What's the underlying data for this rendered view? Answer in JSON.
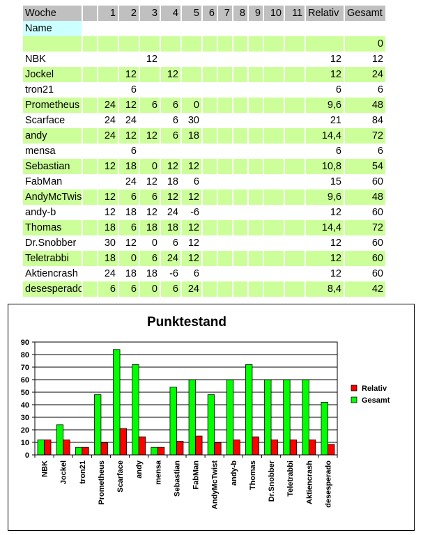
{
  "table": {
    "header": [
      "Woche",
      "",
      "1",
      "2",
      "3",
      "4",
      "5",
      "6",
      "7",
      "8",
      "9",
      "10",
      "11",
      "Relativ",
      "Gesamt"
    ],
    "name_label": "Name",
    "blank_row_total": "0",
    "rows": [
      {
        "name": "NBK",
        "w": [
          "",
          "",
          "12",
          "",
          "",
          "",
          "",
          "",
          "",
          "",
          ""
        ],
        "relativ": "12",
        "gesamt": "12"
      },
      {
        "name": "Jockel",
        "w": [
          "",
          "12",
          "",
          "12",
          "",
          "",
          "",
          "",
          "",
          "",
          ""
        ],
        "relativ": "12",
        "gesamt": "24"
      },
      {
        "name": "tron21",
        "w": [
          "",
          "6",
          "",
          "",
          "",
          "",
          "",
          "",
          "",
          "",
          ""
        ],
        "relativ": "6",
        "gesamt": "6"
      },
      {
        "name": "Prometheus",
        "w": [
          "24",
          "12",
          "6",
          "6",
          "0",
          "",
          "",
          "",
          "",
          "",
          ""
        ],
        "relativ": "9,6",
        "gesamt": "48"
      },
      {
        "name": "Scarface",
        "w": [
          "24",
          "24",
          "",
          "6",
          "30",
          "",
          "",
          "",
          "",
          "",
          ""
        ],
        "relativ": "21",
        "gesamt": "84"
      },
      {
        "name": "andy",
        "w": [
          "24",
          "12",
          "12",
          "6",
          "18",
          "",
          "",
          "",
          "",
          "",
          ""
        ],
        "relativ": "14,4",
        "gesamt": "72"
      },
      {
        "name": "mensa",
        "w": [
          "",
          "6",
          "",
          "",
          "",
          "",
          "",
          "",
          "",
          "",
          ""
        ],
        "relativ": "6",
        "gesamt": "6"
      },
      {
        "name": "Sebastian",
        "w": [
          "12",
          "18",
          "0",
          "12",
          "12",
          "",
          "",
          "",
          "",
          "",
          ""
        ],
        "relativ": "10,8",
        "gesamt": "54"
      },
      {
        "name": "FabMan",
        "w": [
          "",
          "24",
          "12",
          "18",
          "6",
          "",
          "",
          "",
          "",
          "",
          ""
        ],
        "relativ": "15",
        "gesamt": "60"
      },
      {
        "name": "AndyMcTwist",
        "w": [
          "12",
          "6",
          "6",
          "12",
          "12",
          "",
          "",
          "",
          "",
          "",
          ""
        ],
        "relativ": "9,6",
        "gesamt": "48"
      },
      {
        "name": "andy-b",
        "w": [
          "12",
          "18",
          "12",
          "24",
          "-6",
          "",
          "",
          "",
          "",
          "",
          ""
        ],
        "relativ": "12",
        "gesamt": "60"
      },
      {
        "name": "Thomas",
        "w": [
          "18",
          "6",
          "18",
          "18",
          "12",
          "",
          "",
          "",
          "",
          "",
          ""
        ],
        "relativ": "14,4",
        "gesamt": "72"
      },
      {
        "name": "Dr.Snobber",
        "w": [
          "30",
          "12",
          "0",
          "6",
          "12",
          "",
          "",
          "",
          "",
          "",
          ""
        ],
        "relativ": "12",
        "gesamt": "60"
      },
      {
        "name": "Teletrabbi",
        "w": [
          "18",
          "0",
          "6",
          "24",
          "12",
          "",
          "",
          "",
          "",
          "",
          ""
        ],
        "relativ": "12",
        "gesamt": "60"
      },
      {
        "name": "Aktiencrash",
        "w": [
          "24",
          "18",
          "18",
          "-6",
          "6",
          "",
          "",
          "",
          "",
          "",
          ""
        ],
        "relativ": "12",
        "gesamt": "60"
      },
      {
        "name": "desesperado",
        "w": [
          "6",
          "6",
          "0",
          "6",
          "24",
          "",
          "",
          "",
          "",
          "",
          ""
        ],
        "relativ": "8,4",
        "gesamt": "42"
      }
    ]
  },
  "chart_data": {
    "type": "bar",
    "title": "Punktestand",
    "categories": [
      "NBK",
      "Jockel",
      "tron21",
      "Prometheus",
      "Scarface",
      "andy",
      "mensa",
      "Sebastian",
      "FabMan",
      "AndyMcTwist",
      "andy-b",
      "Thomas",
      "Dr.Snobber",
      "Teletrabbi",
      "Aktiencrash",
      "desesperado"
    ],
    "series": [
      {
        "name": "Relativ",
        "color": "#ff0000",
        "values": [
          12,
          12,
          6,
          9.6,
          21,
          14.4,
          6,
          10.8,
          15,
          9.6,
          12,
          14.4,
          12,
          12,
          12,
          8.4
        ]
      },
      {
        "name": "Gesamt",
        "color": "#00ff00",
        "values": [
          12,
          24,
          6,
          48,
          84,
          72,
          6,
          54,
          60,
          48,
          60,
          72,
          60,
          60,
          60,
          42
        ]
      }
    ],
    "ylim": [
      0,
      90
    ],
    "yticks": [
      "0",
      "10",
      "20",
      "30",
      "40",
      "50",
      "60",
      "70",
      "80",
      "90"
    ],
    "xlabel": "",
    "ylabel": "",
    "grid": true,
    "legend": "right"
  }
}
